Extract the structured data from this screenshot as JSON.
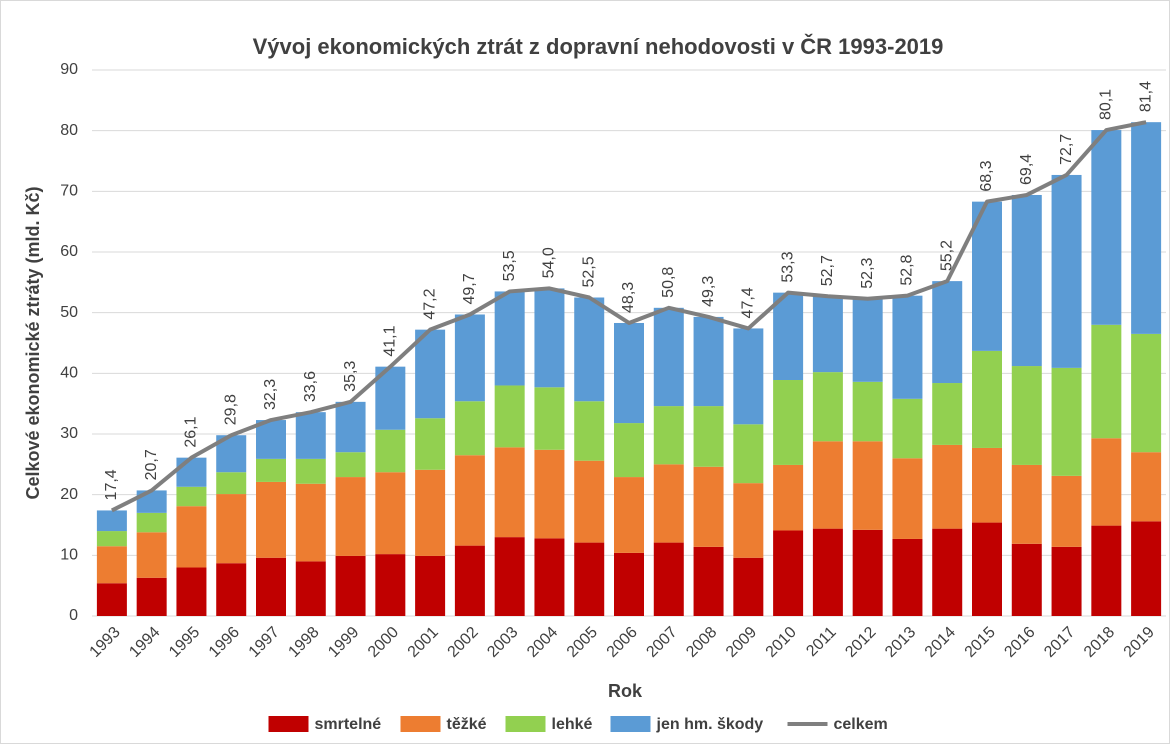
{
  "chart_data": {
    "type": "bar",
    "stacked": true,
    "title": "Vývoj ekonomických ztrát z dopravní nehodovosti v ČR 1993-2019",
    "x_label": "Rok",
    "y_label": "Celkové ekonomické ztráty (mld. Kč)",
    "categories": [
      "1993",
      "1994",
      "1995",
      "1996",
      "1997",
      "1998",
      "1999",
      "2000",
      "2001",
      "2002",
      "2003",
      "2004",
      "2005",
      "2006",
      "2007",
      "2008",
      "2009",
      "2010",
      "2011",
      "2012",
      "2013",
      "2014",
      "2015",
      "2016",
      "2017",
      "2018",
      "2019"
    ],
    "ylim": [
      0,
      90
    ],
    "yticks": [
      0,
      10,
      20,
      30,
      40,
      50,
      60,
      70,
      80,
      90
    ],
    "grid": true,
    "legend": "bottom",
    "series": [
      {
        "name": "smrtelné",
        "color": "#c00000",
        "values": [
          5.4,
          6.3,
          8.0,
          8.7,
          9.6,
          9.0,
          9.9,
          10.2,
          9.9,
          11.6,
          13.0,
          12.8,
          12.1,
          10.4,
          12.1,
          11.4,
          9.6,
          14.1,
          14.4,
          14.2,
          12.7,
          14.4,
          15.4,
          11.9,
          11.4,
          14.9,
          15.6
        ]
      },
      {
        "name": "těžké",
        "color": "#ed7d31",
        "values": [
          6.1,
          7.5,
          10.1,
          11.4,
          12.5,
          12.8,
          13.0,
          13.5,
          14.2,
          14.9,
          14.8,
          14.6,
          13.5,
          12.5,
          12.9,
          13.2,
          12.3,
          10.8,
          14.4,
          14.6,
          13.3,
          13.8,
          12.3,
          13.0,
          11.7,
          14.4,
          11.4
        ]
      },
      {
        "name": "lehké",
        "color": "#92d050",
        "values": [
          2.5,
          3.2,
          3.2,
          3.6,
          3.8,
          4.1,
          4.1,
          7.0,
          8.5,
          8.9,
          10.2,
          10.3,
          9.8,
          8.9,
          9.6,
          10.0,
          9.7,
          14.0,
          11.4,
          9.8,
          9.8,
          10.2,
          16.0,
          16.3,
          17.8,
          18.7,
          19.5
        ]
      },
      {
        "name": "jen hm. škody",
        "color": "#5b9bd5",
        "values": [
          3.4,
          3.7,
          4.8,
          6.1,
          6.4,
          7.7,
          8.3,
          10.4,
          14.6,
          14.3,
          15.5,
          16.3,
          17.1,
          16.5,
          16.2,
          14.7,
          15.8,
          14.4,
          12.5,
          13.7,
          17.0,
          16.8,
          24.6,
          28.2,
          31.8,
          32.1,
          34.9
        ]
      },
      {
        "name": "celkem",
        "type": "line",
        "color": "#7f7f7f",
        "values": [
          17.4,
          20.7,
          26.1,
          29.8,
          32.3,
          33.6,
          35.3,
          41.1,
          47.2,
          49.7,
          53.5,
          54.0,
          52.5,
          48.3,
          50.8,
          49.3,
          47.4,
          53.3,
          52.7,
          52.3,
          52.8,
          55.2,
          68.3,
          69.4,
          72.7,
          80.1,
          81.4
        ],
        "value_labels": [
          "17,4",
          "20,7",
          "26,1",
          "29,8",
          "32,3",
          "33,6",
          "35,3",
          "41,1",
          "47,2",
          "49,7",
          "53,5",
          "54,0",
          "52,5",
          "48,3",
          "50,8",
          "49,3",
          "47,4",
          "53,3",
          "52,7",
          "52,3",
          "52,8",
          "55,2",
          "68,3",
          "69,4",
          "72,7",
          "80,1",
          "81,4"
        ]
      }
    ]
  }
}
